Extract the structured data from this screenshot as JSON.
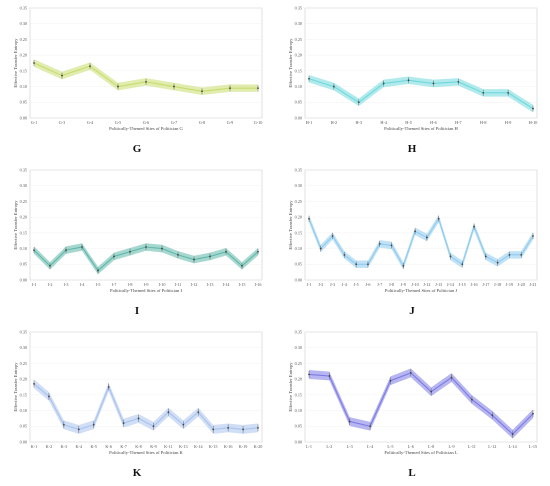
{
  "chart_data": [
    {
      "type": "line",
      "letter": "G",
      "color": "#c8dc6e",
      "xlabel": "Politically-Themed Sites of Politician G",
      "ylabel": "Effective Transfer Entropy",
      "ylim": [
        0,
        0.35
      ],
      "yticks": [
        "0.00",
        "0.05",
        "0.10",
        "0.15",
        "0.20",
        "0.25",
        "0.30",
        "0.35"
      ],
      "categories": [
        "G-1",
        "G-3",
        "G-4",
        "G-5",
        "G-6",
        "G-7",
        "G-8",
        "G-9",
        "G-10"
      ],
      "values": [
        0.175,
        0.135,
        0.165,
        0.1,
        0.115,
        0.1,
        0.085,
        0.095,
        0.095
      ],
      "band": 0.012
    },
    {
      "type": "line",
      "letter": "H",
      "color": "#6fd8dc",
      "xlabel": "Politically-Themed Sites of Politician H",
      "ylabel": "Effective Transfer Entropy",
      "ylim": [
        0,
        0.35
      ],
      "yticks": [
        "0.00",
        "0.05",
        "0.10",
        "0.15",
        "0.20",
        "0.25",
        "0.30",
        "0.35"
      ],
      "categories": [
        "H-1",
        "H-2",
        "H-3",
        "H-4",
        "H-5",
        "H-6",
        "H-7",
        "H-8",
        "H-9",
        "H-10"
      ],
      "values": [
        0.125,
        0.1,
        0.05,
        0.11,
        0.12,
        0.11,
        0.115,
        0.08,
        0.08,
        0.03
      ],
      "band": 0.012
    },
    {
      "type": "line",
      "letter": "I",
      "color": "#5fb8aa",
      "xlabel": "Politically-Themed Sites of Politician I",
      "ylabel": "Effective Transfer Entropy",
      "ylim": [
        0,
        0.35
      ],
      "yticks": [
        "0.00",
        "0.05",
        "0.10",
        "0.15",
        "0.20",
        "0.25",
        "0.30",
        "0.35"
      ],
      "categories": [
        "I-1",
        "I-2",
        "I-3",
        "I-4",
        "I-5",
        "I-7",
        "I-8",
        "I-9",
        "I-10",
        "I-11",
        "I-12",
        "I-13",
        "I-14",
        "I-15",
        "I-16"
      ],
      "values": [
        0.095,
        0.045,
        0.095,
        0.105,
        0.03,
        0.075,
        0.09,
        0.105,
        0.1,
        0.08,
        0.065,
        0.075,
        0.09,
        0.045,
        0.09
      ],
      "band": 0.012
    },
    {
      "type": "line",
      "letter": "J",
      "color": "#8ecbee",
      "xlabel": "Politically-Themed Sites of Politician J",
      "ylabel": "Effective Transfer Entropy",
      "ylim": [
        0,
        0.35
      ],
      "yticks": [
        "0.00",
        "0.05",
        "0.10",
        "0.15",
        "0.20",
        "0.25",
        "0.30",
        "0.35"
      ],
      "categories": [
        "J-1",
        "J-2",
        "J-3",
        "J-4",
        "J-5",
        "J-6",
        "J-7",
        "J-8",
        "J-9",
        "J-10",
        "J-12",
        "J-13",
        "J-14",
        "J-15",
        "J-16",
        "J-17",
        "J-18",
        "J-19",
        "J-20",
        "J-21"
      ],
      "values": [
        0.195,
        0.1,
        0.14,
        0.08,
        0.05,
        0.05,
        0.115,
        0.11,
        0.045,
        0.155,
        0.135,
        0.195,
        0.075,
        0.05,
        0.17,
        0.075,
        0.055,
        0.08,
        0.08,
        0.14
      ],
      "band": 0.012
    },
    {
      "type": "line",
      "letter": "K",
      "color": "#a9c2ef",
      "xlabel": "Politically-Themed Sites of Politician K",
      "ylabel": "Effective Transfer Entropy",
      "ylim": [
        0,
        0.35
      ],
      "yticks": [
        "0.00",
        "0.05",
        "0.10",
        "0.15",
        "0.20",
        "0.25",
        "0.30",
        "0.35"
      ],
      "categories": [
        "K-1",
        "K-2",
        "K-3",
        "K-4",
        "K-5",
        "K-6",
        "K-7",
        "K-8",
        "K-9",
        "K-11",
        "K-13",
        "K-14",
        "K-15",
        "K-16",
        "K-19",
        "K-20"
      ],
      "values": [
        0.185,
        0.145,
        0.055,
        0.04,
        0.055,
        0.175,
        0.06,
        0.075,
        0.05,
        0.095,
        0.055,
        0.095,
        0.04,
        0.045,
        0.04,
        0.045
      ],
      "band": 0.014
    },
    {
      "type": "line",
      "letter": "L",
      "color": "#7b7ae4",
      "xlabel": "Politically-Themed Sites of Politician L",
      "ylabel": "Effective Transfer Entropy",
      "ylim": [
        0,
        0.35
      ],
      "yticks": [
        "0.00",
        "0.05",
        "0.10",
        "0.15",
        "0.20",
        "0.25",
        "0.30",
        "0.35"
      ],
      "categories": [
        "L-1",
        "L-2",
        "L-3",
        "L-4",
        "L-5",
        "L-6",
        "L-8",
        "L-9",
        "L-11",
        "L-12",
        "L-14",
        "L-15"
      ],
      "values": [
        0.215,
        0.21,
        0.065,
        0.05,
        0.195,
        0.22,
        0.16,
        0.205,
        0.135,
        0.085,
        0.025,
        0.09
      ],
      "band": 0.014
    }
  ]
}
